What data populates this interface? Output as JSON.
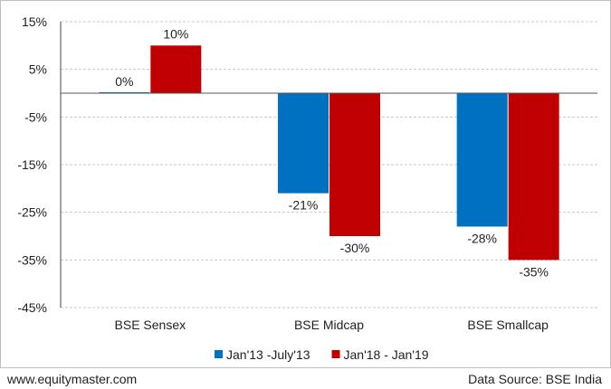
{
  "chart_data": {
    "type": "bar",
    "categories": [
      "BSE Sensex",
      "BSE Midcap",
      "BSE Smallcap"
    ],
    "series": [
      {
        "name": "Jan'13 -July'13",
        "values": [
          0,
          -21,
          -28
        ],
        "labels": [
          "0%",
          "-21%",
          "-28%"
        ],
        "color": "#0070c0"
      },
      {
        "name": "Jan'18 - Jan'19",
        "values": [
          10,
          -30,
          -35
        ],
        "labels": [
          "10%",
          "-30%",
          "-35%"
        ],
        "color": "#c00000"
      }
    ],
    "y_ticks": [
      15,
      5,
      -5,
      -15,
      -25,
      -35,
      -45
    ],
    "y_tick_labels": [
      "15%",
      "5%",
      "-5%",
      "-15%",
      "-25%",
      "-35%",
      "-45%"
    ],
    "ylim": [
      -45,
      15
    ],
    "grid": true,
    "legend_position": "bottom"
  },
  "footer": {
    "website": "www.equitymaster.com",
    "source": "Data Source: BSE India"
  }
}
